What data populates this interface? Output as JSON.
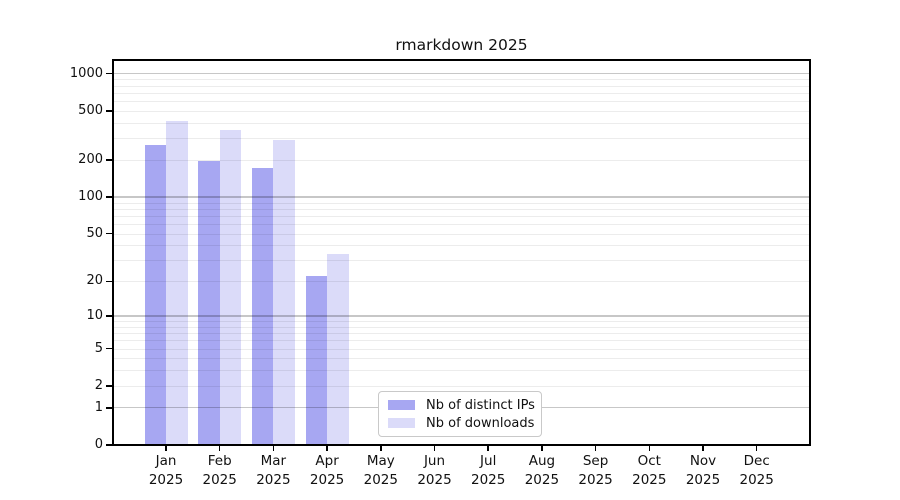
{
  "chart_data": {
    "type": "bar",
    "title": "rmarkdown 2025",
    "categories": [
      "Jan",
      "Feb",
      "Mar",
      "Apr",
      "May",
      "Jun",
      "Jul",
      "Aug",
      "Sep",
      "Oct",
      "Nov",
      "Dec"
    ],
    "year_line": "2025",
    "series": [
      {
        "name": "Nb of distinct IPs",
        "color": "#a7a7f2",
        "values": [
          266,
          198,
          171,
          22,
          null,
          null,
          null,
          null,
          null,
          null,
          null,
          null
        ]
      },
      {
        "name": "Nb of downloads",
        "color": "#dbdbf9",
        "values": [
          416,
          352,
          290,
          34,
          null,
          null,
          null,
          null,
          null,
          null,
          null,
          null
        ]
      }
    ],
    "y_ticks": [
      0,
      1,
      2,
      5,
      10,
      20,
      50,
      100,
      200,
      500,
      1000
    ],
    "y_scale": "log1p",
    "ylim": [
      0,
      1290
    ],
    "xlabel": "",
    "ylabel": "",
    "grid": true,
    "legend_position": "bottom-center-inside",
    "axis_color": "#000000",
    "background_color": "#ffffff"
  }
}
